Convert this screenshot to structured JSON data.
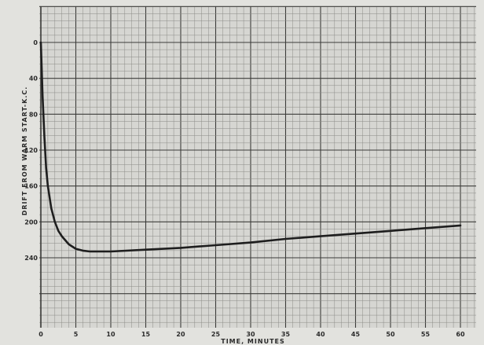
{
  "chart_data": {
    "type": "line",
    "title": "",
    "xlabel": "TIME, MINUTES",
    "ylabel": "DRIFT FROM WARM START-K.C.",
    "xlim": [
      0,
      60
    ],
    "ylim": [
      0,
      240
    ],
    "y_inverted": true,
    "grid": true,
    "x_ticks": [
      0,
      5,
      10,
      15,
      20,
      25,
      30,
      35,
      40,
      45,
      50,
      55,
      60
    ],
    "x_tick_labels": [
      "0",
      "5",
      "10",
      "15",
      "20",
      "25",
      "30",
      "35",
      "40",
      "45",
      "50",
      "55",
      "60"
    ],
    "y_ticks": [
      0,
      40,
      80,
      120,
      160,
      200,
      240
    ],
    "y_tick_labels": [
      "0",
      "40",
      "80",
      "120",
      "160",
      "200",
      "240"
    ],
    "series": [
      {
        "x": [
          0,
          0.25,
          0.5,
          0.75,
          1,
          1.5,
          2,
          2.5,
          3,
          4,
          5,
          6,
          7,
          8,
          10,
          15,
          20,
          25,
          30,
          35,
          40,
          45,
          50,
          55,
          60
        ],
        "y": [
          0,
          60,
          105,
          140,
          160,
          185,
          200,
          210,
          216,
          225,
          230,
          232,
          233,
          233,
          233,
          231,
          229,
          226,
          223,
          219,
          216,
          213,
          210,
          207,
          204
        ]
      }
    ],
    "colors": {
      "paper": "#e2e2de",
      "grid_minor": "#8c8c88",
      "grid_major": "#3c3c3a",
      "curve": "#1e1e1e",
      "text": "#2a2a2a"
    }
  }
}
